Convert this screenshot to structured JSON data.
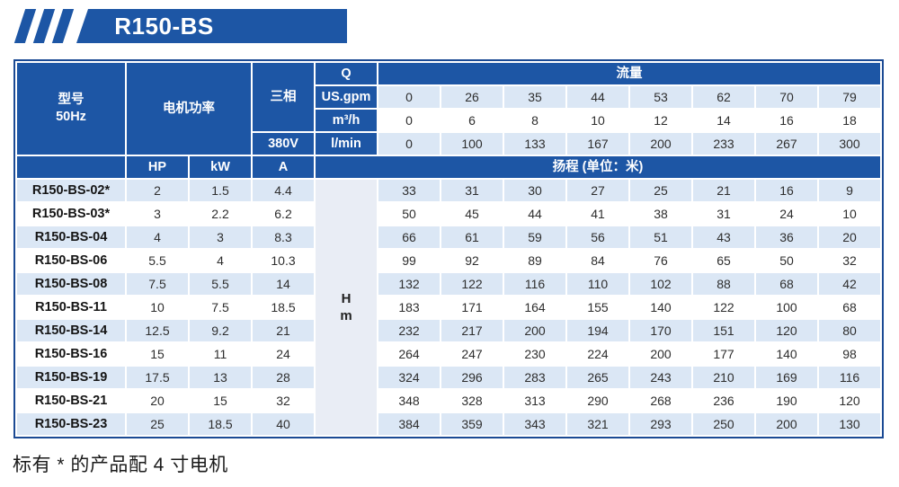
{
  "banner": {
    "label": "R150-BS"
  },
  "table": {
    "header": {
      "model_line1": "型号",
      "model_line2": "50Hz",
      "motor_power": "电机功率",
      "three_phase": "三相",
      "voltage": "380V",
      "q_label": "Q",
      "flow_label": "流量",
      "hp": "HP",
      "kw": "kW",
      "amp": "A",
      "head_label": "扬程 (单位：米)",
      "head_unit_line1": "H",
      "head_unit_line2": "m"
    },
    "flow_rows": [
      {
        "unit": "US.gpm",
        "values": [
          "0",
          "26",
          "35",
          "44",
          "53",
          "62",
          "70",
          "79"
        ]
      },
      {
        "unit": "m³/h",
        "values": [
          "0",
          "6",
          "8",
          "10",
          "12",
          "14",
          "16",
          "18"
        ]
      },
      {
        "unit": "l/min",
        "values": [
          "0",
          "100",
          "133",
          "167",
          "200",
          "233",
          "267",
          "300"
        ]
      }
    ],
    "rows": [
      {
        "model": "R150-BS-02*",
        "hp": "2",
        "kw": "1.5",
        "amp": "4.4",
        "head": [
          "33",
          "31",
          "30",
          "27",
          "25",
          "21",
          "16",
          "9"
        ]
      },
      {
        "model": "R150-BS-03*",
        "hp": "3",
        "kw": "2.2",
        "amp": "6.2",
        "head": [
          "50",
          "45",
          "44",
          "41",
          "38",
          "31",
          "24",
          "10"
        ]
      },
      {
        "model": "R150-BS-04",
        "hp": "4",
        "kw": "3",
        "amp": "8.3",
        "head": [
          "66",
          "61",
          "59",
          "56",
          "51",
          "43",
          "36",
          "20"
        ]
      },
      {
        "model": "R150-BS-06",
        "hp": "5.5",
        "kw": "4",
        "amp": "10.3",
        "head": [
          "99",
          "92",
          "89",
          "84",
          "76",
          "65",
          "50",
          "32"
        ]
      },
      {
        "model": "R150-BS-08",
        "hp": "7.5",
        "kw": "5.5",
        "amp": "14",
        "head": [
          "132",
          "122",
          "116",
          "110",
          "102",
          "88",
          "68",
          "42"
        ]
      },
      {
        "model": "R150-BS-11",
        "hp": "10",
        "kw": "7.5",
        "amp": "18.5",
        "head": [
          "183",
          "171",
          "164",
          "155",
          "140",
          "122",
          "100",
          "68"
        ]
      },
      {
        "model": "R150-BS-14",
        "hp": "12.5",
        "kw": "9.2",
        "amp": "21",
        "head": [
          "232",
          "217",
          "200",
          "194",
          "170",
          "151",
          "120",
          "80"
        ]
      },
      {
        "model": "R150-BS-16",
        "hp": "15",
        "kw": "11",
        "amp": "24",
        "head": [
          "264",
          "247",
          "230",
          "224",
          "200",
          "177",
          "140",
          "98"
        ]
      },
      {
        "model": "R150-BS-19",
        "hp": "17.5",
        "kw": "13",
        "amp": "28",
        "head": [
          "324",
          "296",
          "283",
          "265",
          "243",
          "210",
          "169",
          "116"
        ]
      },
      {
        "model": "R150-BS-21",
        "hp": "20",
        "kw": "15",
        "amp": "32",
        "head": [
          "348",
          "328",
          "313",
          "290",
          "268",
          "236",
          "190",
          "120"
        ]
      },
      {
        "model": "R150-BS-23",
        "hp": "25",
        "kw": "18.5",
        "amp": "40",
        "head": [
          "384",
          "359",
          "343",
          "321",
          "293",
          "250",
          "200",
          "130"
        ]
      }
    ]
  },
  "footnote": "标有 * 的产品配 4 寸电机",
  "colors": {
    "header_blue": "#1d56a5",
    "border_blue": "#1b4a94",
    "stripe_blue": "#dbe7f5",
    "unit_column": "#e9edf5"
  }
}
